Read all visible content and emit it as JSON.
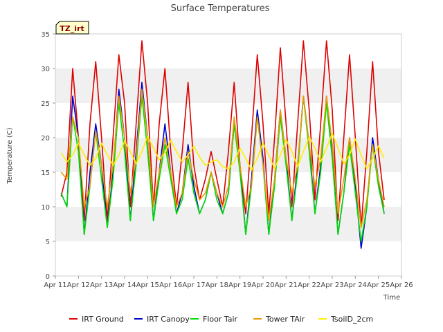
{
  "chart_data": {
    "type": "line",
    "title": "Surface Temperatures",
    "xlabel": "Time",
    "ylabel": "Temperature (C)",
    "site_badge": "TZ_irt",
    "xlim": [
      11,
      26
    ],
    "ylim": [
      0,
      35
    ],
    "x_ticks": [
      11,
      12,
      13,
      14,
      15,
      16,
      17,
      18,
      19,
      20,
      21,
      22,
      23,
      24,
      25,
      26
    ],
    "x_tick_labels": [
      "Apr 11",
      "Apr 12",
      "Apr 13",
      "Apr 14",
      "Apr 15",
      "Apr 16",
      "Apr 17",
      "Apr 18",
      "Apr 19",
      "Apr 20",
      "Apr 21",
      "Apr 22",
      "Apr 23",
      "Apr 24",
      "Apr 25",
      "Apr 26"
    ],
    "y_ticks": [
      0,
      5,
      10,
      15,
      20,
      25,
      30,
      35
    ],
    "y_tick_labels": [
      "0",
      "5",
      "10",
      "15",
      "20",
      "25",
      "30",
      "35"
    ],
    "background_bands": "alternating grey bands every 5 units",
    "legend_position": "bottom",
    "series": [
      {
        "name": "IRT Ground",
        "color": "#dd0000",
        "x": [
          11.25,
          11.5,
          11.75,
          12.0,
          12.25,
          12.5,
          12.75,
          13.0,
          13.25,
          13.5,
          13.75,
          14.0,
          14.25,
          14.5,
          14.75,
          15.0,
          15.25,
          15.5,
          15.75,
          16.0,
          16.25,
          16.5,
          16.75,
          17.0,
          17.25,
          17.5,
          17.75,
          18.0,
          18.25,
          18.5,
          18.75,
          19.0,
          19.25,
          19.5,
          19.75,
          20.0,
          20.25,
          20.5,
          20.75,
          21.0,
          21.25,
          21.5,
          21.75,
          22.0,
          22.25,
          22.5,
          22.75,
          23.0,
          23.25,
          23.5,
          23.75,
          24.0,
          24.25,
          24.5,
          24.75,
          25.0,
          25.25
        ],
        "y": [
          11.5,
          15,
          30,
          20,
          8,
          22,
          31,
          20,
          8,
          20,
          32,
          25,
          10,
          22,
          34,
          25,
          10,
          22,
          30,
          18,
          10,
          18,
          28,
          16,
          11,
          14,
          18,
          14,
          10,
          18,
          28,
          16,
          9,
          20,
          32,
          22,
          9,
          20,
          33,
          22,
          10,
          22,
          34,
          24,
          11,
          22,
          34,
          24,
          8,
          20,
          32,
          20,
          7,
          18,
          31,
          18,
          11
        ]
      },
      {
        "name": "IRT Canopy",
        "color": "#0000cc",
        "x": [
          11.25,
          11.5,
          11.75,
          12.0,
          12.25,
          12.5,
          12.75,
          13.0,
          13.25,
          13.5,
          13.75,
          14.0,
          14.25,
          14.5,
          14.75,
          15.0,
          15.25,
          15.5,
          15.75,
          16.0,
          16.25,
          16.5,
          16.75,
          17.0,
          17.25,
          17.5,
          17.75,
          18.0,
          18.25,
          18.5,
          18.75,
          19.0,
          19.25,
          19.5,
          19.75,
          20.0,
          20.25,
          20.5,
          20.75,
          21.0,
          21.25,
          21.5,
          21.75,
          22.0,
          22.25,
          22.5,
          22.75,
          23.0,
          23.25,
          23.5,
          23.75,
          24.0,
          24.25,
          24.5,
          24.75,
          25.0,
          25.25
        ],
        "y": [
          12,
          10,
          26,
          20,
          6,
          15,
          22,
          16,
          7,
          15,
          27,
          20,
          8,
          18,
          28,
          20,
          8,
          15,
          22,
          15,
          9,
          12,
          19,
          13,
          9,
          11,
          15,
          12,
          9,
          12,
          22,
          16,
          6,
          14,
          24,
          17,
          6,
          14,
          24,
          17,
          8,
          16,
          26,
          19,
          9,
          16,
          26,
          18,
          6,
          12,
          20,
          13,
          4,
          10,
          20,
          14,
          9
        ]
      },
      {
        "name": "Floor Tair",
        "color": "#00dd00",
        "x": [
          11.25,
          11.5,
          11.75,
          12.0,
          12.25,
          12.5,
          12.75,
          13.0,
          13.25,
          13.5,
          13.75,
          14.0,
          14.25,
          14.5,
          14.75,
          15.0,
          15.25,
          15.5,
          15.75,
          16.0,
          16.25,
          16.5,
          16.75,
          17.0,
          17.25,
          17.5,
          17.75,
          18.0,
          18.25,
          18.5,
          18.75,
          19.0,
          19.25,
          19.5,
          19.75,
          20.0,
          20.25,
          20.5,
          20.75,
          21.0,
          21.25,
          21.5,
          21.75,
          22.0,
          22.25,
          22.5,
          22.75,
          23.0,
          23.25,
          23.5,
          23.75,
          24.0,
          24.25,
          24.5,
          24.75,
          25.0,
          25.25
        ],
        "y": [
          12,
          10,
          23,
          18,
          6,
          13,
          21,
          14,
          7,
          14,
          25,
          18,
          8,
          16,
          26,
          18,
          8,
          14,
          19,
          14,
          9,
          11,
          17,
          12,
          9,
          11,
          15,
          11,
          9,
          12,
          22,
          15,
          6,
          13,
          23,
          16,
          6,
          13,
          23,
          16,
          8,
          15,
          26,
          18,
          9,
          15,
          25,
          17,
          6,
          12,
          19,
          12,
          5,
          10,
          19,
          13,
          9
        ]
      },
      {
        "name": "Tower TAir",
        "color": "#ee9900",
        "x": [
          11.25,
          11.5,
          11.75,
          12.0,
          12.25,
          12.5,
          12.75,
          13.0,
          13.25,
          13.5,
          13.75,
          14.0,
          14.25,
          14.5,
          14.75,
          15.0,
          15.25,
          15.5,
          15.75,
          16.0,
          16.25,
          16.5,
          16.75,
          17.0,
          17.25,
          17.5,
          17.75,
          18.0,
          18.25,
          18.5,
          18.75,
          19.0,
          19.25,
          19.5,
          19.75,
          20.0,
          20.25,
          20.5,
          20.75,
          21.0,
          21.25,
          21.5,
          21.75,
          22.0,
          22.25,
          22.5,
          22.75,
          23.0,
          23.25,
          23.5,
          23.75,
          24.0,
          24.25,
          24.5,
          24.75,
          25.0,
          25.25
        ],
        "y": [
          15,
          14,
          23,
          20,
          10,
          13,
          21,
          16,
          10,
          16,
          26,
          20,
          12,
          17,
          27,
          20,
          10,
          15,
          20,
          15,
          10,
          12,
          18,
          14,
          11,
          12,
          15,
          12,
          10,
          13,
          23,
          16,
          10,
          13,
          23,
          16,
          8,
          14,
          24,
          17,
          12,
          16,
          26,
          19,
          13,
          17,
          26,
          19,
          9,
          14,
          20,
          14,
          7,
          11,
          19,
          14,
          10
        ]
      },
      {
        "name": "TsoilD_2cm",
        "color": "#ffee00",
        "x": [
          11.25,
          11.5,
          11.75,
          12.0,
          12.25,
          12.5,
          12.75,
          13.0,
          13.25,
          13.5,
          13.75,
          14.0,
          14.25,
          14.5,
          14.75,
          15.0,
          15.25,
          15.5,
          15.75,
          16.0,
          16.25,
          16.5,
          16.75,
          17.0,
          17.25,
          17.5,
          17.75,
          18.0,
          18.25,
          18.5,
          18.75,
          19.0,
          19.25,
          19.5,
          19.75,
          20.0,
          20.25,
          20.5,
          20.75,
          21.0,
          21.25,
          21.5,
          21.75,
          22.0,
          22.25,
          22.5,
          22.75,
          23.0,
          23.25,
          23.5,
          23.75,
          24.0,
          24.25,
          24.5,
          24.75,
          25.0,
          25.25
        ],
        "y": [
          17.8,
          16.5,
          17.5,
          19.2,
          17.5,
          16.0,
          17.0,
          19.2,
          17.5,
          16.0,
          17.5,
          19.5,
          18.0,
          16.2,
          18.0,
          20.2,
          18.5,
          16.8,
          17.8,
          19.6,
          18.0,
          16.5,
          17.5,
          18.8,
          17.2,
          16.0,
          16.5,
          16.8,
          15.8,
          15.5,
          16.5,
          18.5,
          17.0,
          15.3,
          17.0,
          19.2,
          17.5,
          15.5,
          17.5,
          19.7,
          18.0,
          15.8,
          18.0,
          20.1,
          18.5,
          16.5,
          18.5,
          20.6,
          18.5,
          16.2,
          17.5,
          19.8,
          17.5,
          15.5,
          17.0,
          18.8,
          17.0
        ]
      }
    ]
  }
}
